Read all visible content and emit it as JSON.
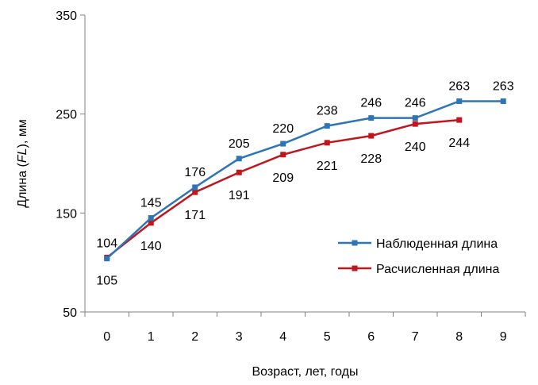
{
  "chart_data": {
    "type": "line",
    "title": "",
    "xlabel": "Возраст, лет, годы",
    "ylabel_parts": [
      "Длина (",
      "FL",
      "), мм"
    ],
    "xlim": [
      0,
      9
    ],
    "ylim": [
      50,
      350
    ],
    "yticks": [
      50,
      150,
      250,
      350
    ],
    "xticks": [
      0,
      1,
      2,
      3,
      4,
      5,
      6,
      7,
      8,
      9
    ],
    "grid": false,
    "legend_position": "bottom-right",
    "series": [
      {
        "name": "Наблюденная длина",
        "color": "#2E75B6",
        "x": [
          0,
          1,
          2,
          3,
          4,
          5,
          6,
          7,
          8,
          9
        ],
        "values": [
          104,
          145,
          176,
          205,
          220,
          238,
          246,
          246,
          263,
          263
        ],
        "label_placement": "above"
      },
      {
        "name": "Расчисленная длина",
        "color": "#C0161E",
        "x": [
          0,
          1,
          2,
          3,
          4,
          5,
          6,
          7,
          8
        ],
        "values": [
          105,
          140,
          171,
          191,
          209,
          221,
          228,
          240,
          244
        ],
        "label_placement": "below"
      }
    ]
  }
}
